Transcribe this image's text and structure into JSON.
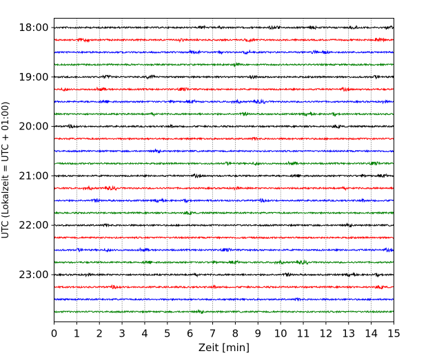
{
  "chart_data": {
    "type": "line",
    "subtype": "helicorder",
    "xlabel": "Zeit  [min]",
    "ylabel": "UTC (Lokalzeit = UTC + 01:00)",
    "xlim": [
      0,
      15
    ],
    "x_ticks": [
      "0",
      "1",
      "2",
      "3",
      "4",
      "5",
      "6",
      "7",
      "8",
      "9",
      "10",
      "11",
      "12",
      "13",
      "14",
      "15"
    ],
    "row_interval_min": 15,
    "start_time_utc": "18:00",
    "row_count": 24,
    "y_tick_labels": [
      "18:00",
      "19:00",
      "20:00",
      "21:00",
      "22:00",
      "23:00"
    ],
    "y_tick_rows": [
      0,
      4,
      8,
      12,
      16,
      20
    ],
    "color_cycle": [
      "#000000",
      "#ff0000",
      "#0000ff",
      "#008000"
    ],
    "grid": {
      "x": "dotted",
      "y": false
    },
    "legend": null
  }
}
